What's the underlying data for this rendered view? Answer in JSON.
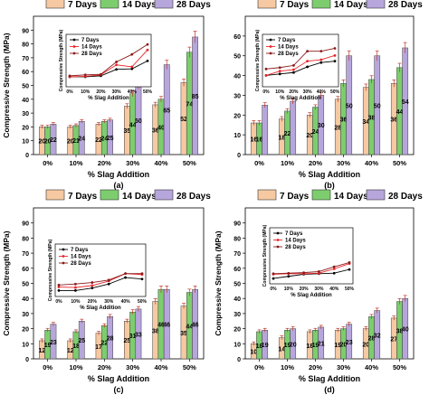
{
  "figure": {
    "colors": {
      "d7": "#f6c9a2",
      "d14": "#7dcd6e",
      "d28": "#b7a6dc",
      "l7": "#000000",
      "l14": "#e8262b",
      "l28": "#8b1a1a"
    }
  },
  "chart_data": [
    {
      "type": "bar",
      "panel_label": "(a)",
      "categories": [
        "0%",
        "10%",
        "20%",
        "30%",
        "40%",
        "50%"
      ],
      "xlabel": "% Slag Addition",
      "ylabel": "Compressive Strength (MPa)",
      "ylim": [
        0,
        100
      ],
      "yticks": [
        0,
        10,
        20,
        30,
        40,
        50,
        60,
        70,
        80,
        90
      ],
      "legend": "top",
      "series": [
        {
          "name": "7 Days",
          "values": [
            20,
            20,
            22,
            35,
            36,
            52
          ],
          "labels": [
            "20",
            "20",
            "22",
            "35",
            "36",
            "52"
          ]
        },
        {
          "name": "14 Days",
          "values": [
            20,
            21,
            24,
            44,
            40,
            74
          ],
          "labels": [
            "20",
            "21",
            "24",
            "44",
            "40",
            "74"
          ]
        },
        {
          "name": "28 Days",
          "values": [
            22,
            24,
            25,
            50,
            65,
            85
          ],
          "labels": [
            "22",
            "24",
            "25",
            "50",
            "65",
            "85"
          ]
        }
      ],
      "inset": {
        "ylabel": "Compressive Strength (MPa)",
        "xlabel": "% Slag Addition",
        "legend": "top-left",
        "categories": [
          "0%",
          "10%",
          "20%",
          "30%",
          "40%",
          "50%"
        ]
      }
    },
    {
      "type": "bar",
      "panel_label": "(b)",
      "categories": [
        "0%",
        "10%",
        "20%",
        "30%",
        "40%",
        "50%"
      ],
      "xlabel": "% Slag Addition",
      "ylabel": "",
      "ylim": [
        0,
        70
      ],
      "yticks": [
        0,
        10,
        20,
        30,
        40,
        50,
        60
      ],
      "legend": "top",
      "series": [
        {
          "name": "7 Days",
          "values": [
            16,
            18,
            20,
            28,
            34,
            36
          ],
          "labels": [
            "16",
            "18",
            "20",
            "28",
            "34",
            "36"
          ]
        },
        {
          "name": "14 Days",
          "values": [
            16,
            22,
            24,
            36,
            38,
            44
          ],
          "labels": [
            "16",
            "22",
            "24",
            "36",
            "38",
            "44"
          ]
        },
        {
          "name": "28 Days",
          "values": [
            25,
            27,
            30,
            50,
            50,
            54
          ],
          "labels": [
            "",
            "",
            "30",
            "50",
            "50",
            "54"
          ]
        }
      ],
      "inset": {
        "ylabel": "Compressive Strength (MPa)",
        "xlabel": "% Slag Addition",
        "legend": "top-left",
        "categories": [
          "0%",
          "10%",
          "20%",
          "30%",
          "40%",
          "50%"
        ]
      }
    },
    {
      "type": "bar",
      "panel_label": "(c)",
      "categories": [
        "0%",
        "10%",
        "20%",
        "30%",
        "40%",
        "50%"
      ],
      "xlabel": "% Slag Addition",
      "ylabel": "Compressive Strength (MPa)",
      "ylim": [
        0,
        100
      ],
      "yticks": [
        0,
        10,
        20,
        30,
        40,
        50,
        60,
        70,
        80,
        90
      ],
      "legend": "top",
      "series": [
        {
          "name": "7 Days",
          "values": [
            12,
            12,
            17,
            25,
            38,
            35
          ],
          "labels": [
            "12",
            "12",
            "17",
            "25",
            "38",
            "35"
          ]
        },
        {
          "name": "14 Days",
          "values": [
            19,
            18,
            22,
            31,
            46,
            44
          ],
          "labels": [
            "19",
            "18",
            "22",
            "31",
            "46",
            "44"
          ]
        },
        {
          "name": "28 Days",
          "values": [
            23,
            25,
            28,
            33,
            46,
            46
          ],
          "labels": [
            "23",
            "25",
            "28",
            "33",
            "46",
            "46"
          ]
        }
      ],
      "inset": {
        "ylabel": "Compressive Strength (MPa)",
        "xlabel": "% Slag Addition",
        "legend": "top-left",
        "categories": [
          "0%",
          "10%",
          "20%",
          "30%",
          "40%",
          "50%"
        ]
      }
    },
    {
      "type": "bar",
      "panel_label": "(d)",
      "categories": [
        "0%",
        "10%",
        "20%",
        "30%",
        "40%",
        "50%"
      ],
      "xlabel": "% Slag Addition",
      "ylabel": "Compressive Strength (MPa)",
      "ylim": [
        0,
        100
      ],
      "yticks": [
        0,
        10,
        20,
        30,
        40,
        50,
        60,
        70,
        80,
        90
      ],
      "legend": "top",
      "series": [
        {
          "name": "7 Days",
          "values": [
            10,
            14,
            18,
            19,
            20,
            27
          ],
          "labels": [
            "10",
            "14",
            "18",
            "19",
            "20",
            "27"
          ]
        },
        {
          "name": "14 Days",
          "values": [
            18,
            19,
            19,
            20,
            28,
            38
          ],
          "labels": [
            "18",
            "19",
            "19",
            "20",
            "28",
            "38"
          ]
        },
        {
          "name": "28 Days",
          "values": [
            19,
            20,
            21,
            23,
            32,
            40
          ],
          "labels": [
            "19",
            "20",
            "21",
            "23",
            "32",
            "40"
          ]
        }
      ],
      "inset": {
        "ylabel": "Compressive Strength (MPa)",
        "xlabel": "% Slag Addition",
        "legend": "top-left",
        "categories": [
          "0%",
          "10%",
          "20%",
          "30%",
          "40%",
          "50%"
        ]
      }
    }
  ]
}
